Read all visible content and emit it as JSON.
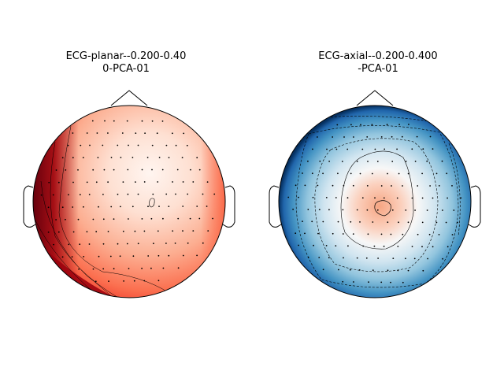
{
  "figure": {
    "panels": [
      {
        "title_line1": "ECG-planar--0.200-0.40",
        "title_line2": "0-PCA-01",
        "colormap": "Reds",
        "colors": {
          "light": "#fff5f0",
          "mid": "#fc8d6e",
          "dark": "#67000d"
        }
      },
      {
        "title_line1": "ECG-axial--0.200-0.400",
        "title_line2": "-PCA-01",
        "colormap": "RdBu_r",
        "colors": {
          "positive": "#f7b79c",
          "neutral": "#f4f7fa",
          "negative": "#08306b"
        }
      }
    ]
  }
}
